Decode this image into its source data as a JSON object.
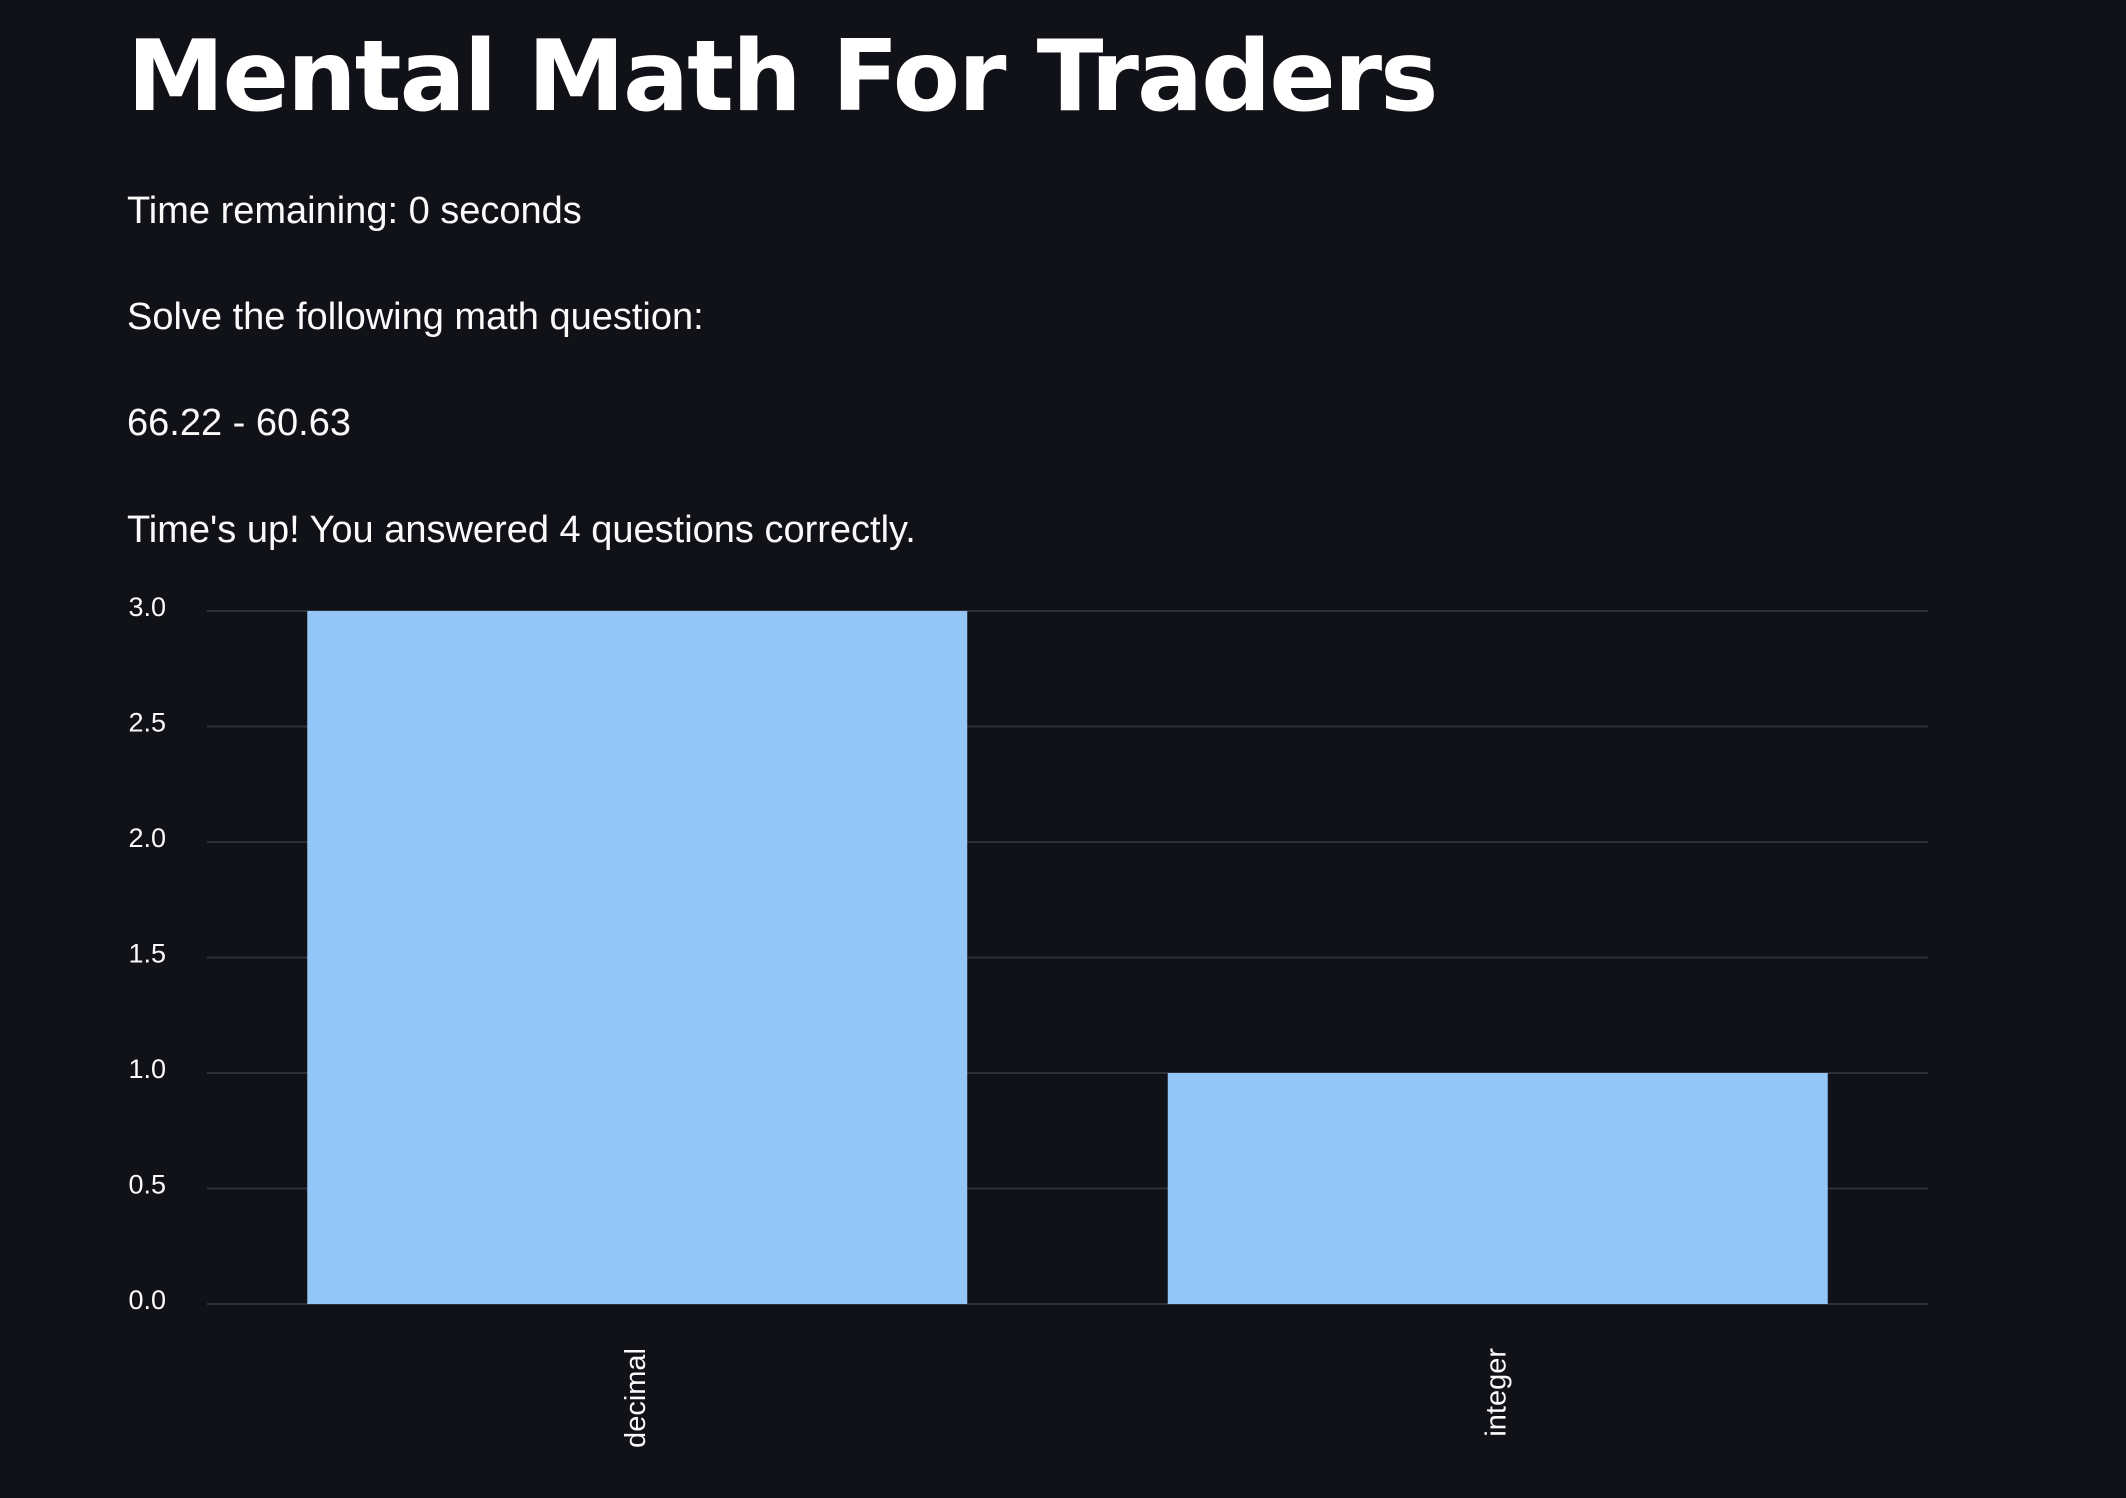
{
  "app": {
    "title": "Mental Math For Traders",
    "timer_text": "Time remaining: 0 seconds",
    "prompt_text": "Solve the following math question:",
    "question": "66.22 - 60.63",
    "result_text": "Time's up! You answered 4 questions correctly."
  },
  "colors": {
    "background": "#111217",
    "text": "#fafafa",
    "bar": "#93c5f7",
    "gridline": "#2e3038"
  },
  "chart_data": {
    "type": "bar",
    "categories": [
      "decimal",
      "integer"
    ],
    "values": [
      3,
      1
    ],
    "ylim": [
      0,
      3
    ],
    "yticks": [
      0,
      0.5,
      1,
      1.5,
      2,
      2.5,
      3
    ],
    "ytick_labels": [
      "0.0",
      "0.5",
      "1.0",
      "1.5",
      "2.0",
      "2.5",
      "3.0"
    ],
    "grid": true,
    "title": "",
    "xlabel": "",
    "ylabel": ""
  }
}
